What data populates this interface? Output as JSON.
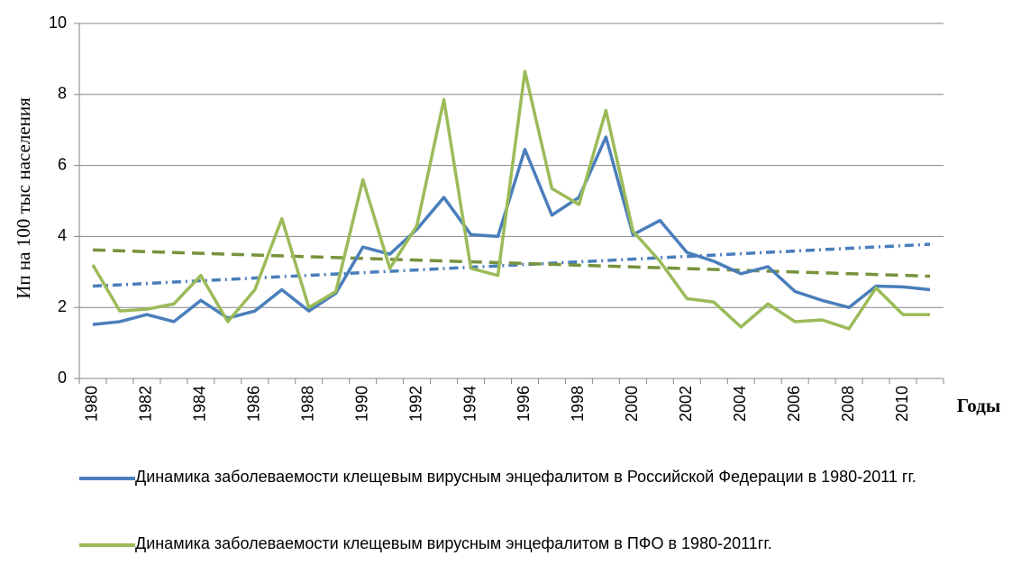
{
  "chart_data": {
    "type": "line",
    "y_label": "Ип на 100 тыс населения",
    "x_label": "Годы",
    "categories": [
      "1980",
      null,
      "1982",
      null,
      "1984",
      null,
      "1986",
      null,
      "1988",
      null,
      "1990",
      null,
      "1992",
      null,
      "1994",
      null,
      "1996",
      null,
      "1998",
      null,
      "2000",
      null,
      "2002",
      null,
      "2004",
      null,
      "2006",
      null,
      "2008",
      null,
      "2010",
      null
    ],
    "series": [
      {
        "name": "Динамика заболеваемости клещевым вирусным энцефалитом в Российской Федерации в 1980-2011 гг.",
        "color": "#4a7ebb",
        "values": [
          1.52,
          1.6,
          1.8,
          1.6,
          2.2,
          1.7,
          1.9,
          2.5,
          1.9,
          2.4,
          3.7,
          3.5,
          4.2,
          5.1,
          4.05,
          4.0,
          6.45,
          4.6,
          5.1,
          6.8,
          4.05,
          4.45,
          3.55,
          3.3,
          2.95,
          3.15,
          2.45,
          2.2,
          2.0,
          2.6,
          2.58,
          2.5
        ]
      },
      {
        "name": "Динамика заболеваемости клещевым вирусным энцефалитом в ПФО в 1980-2011гг.",
        "color": "#9bbb59",
        "values": [
          3.2,
          1.9,
          1.95,
          2.1,
          2.9,
          1.6,
          2.5,
          4.5,
          2.0,
          2.45,
          5.6,
          3.1,
          4.3,
          7.85,
          3.1,
          2.9,
          8.65,
          5.35,
          4.9,
          7.55,
          4.15,
          3.3,
          2.25,
          2.15,
          1.45,
          2.1,
          1.6,
          1.65,
          1.4,
          2.55,
          1.8,
          1.8
        ]
      }
    ],
    "trendlines": [
      {
        "color": "#4a7ebb",
        "dash": "10 5 2 5",
        "values": [
          2.6,
          3.78
        ]
      },
      {
        "color": "#77933c",
        "dash": "14 8",
        "values": [
          3.62,
          2.88
        ]
      }
    ],
    "ylim": [
      0,
      10
    ],
    "yticks": [
      0,
      2,
      4,
      6,
      8,
      10
    ],
    "grid": true
  }
}
